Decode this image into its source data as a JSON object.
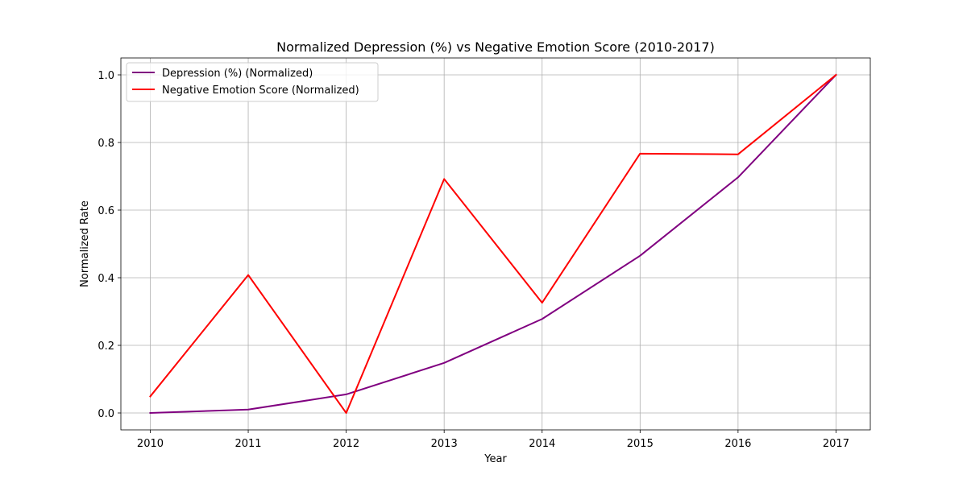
{
  "chart_data": {
    "type": "line",
    "title": "Normalized Depression (%) vs Negative Emotion Score (2010-2017)",
    "xlabel": "Year",
    "ylabel": "Normalized Rate",
    "x": [
      "2010",
      "2011",
      "2012",
      "2013",
      "2014",
      "2015",
      "2016",
      "2017"
    ],
    "xlim": [
      2009.7,
      2017.35
    ],
    "ylim": [
      -0.05,
      1.05
    ],
    "yticks": [
      "0.0",
      "0.2",
      "0.4",
      "0.6",
      "0.8",
      "1.0"
    ],
    "grid": true,
    "legend_position": "upper-left",
    "series": [
      {
        "name": "Depression (%) (Normalized)",
        "color": "#800080",
        "values": [
          0.0,
          0.01,
          0.055,
          0.148,
          0.278,
          0.465,
          0.697,
          1.0
        ]
      },
      {
        "name": "Negative Emotion Score (Normalized)",
        "color": "#ff0000",
        "values": [
          0.049,
          0.408,
          0.0,
          0.692,
          0.326,
          0.767,
          0.765,
          1.0
        ]
      }
    ]
  }
}
